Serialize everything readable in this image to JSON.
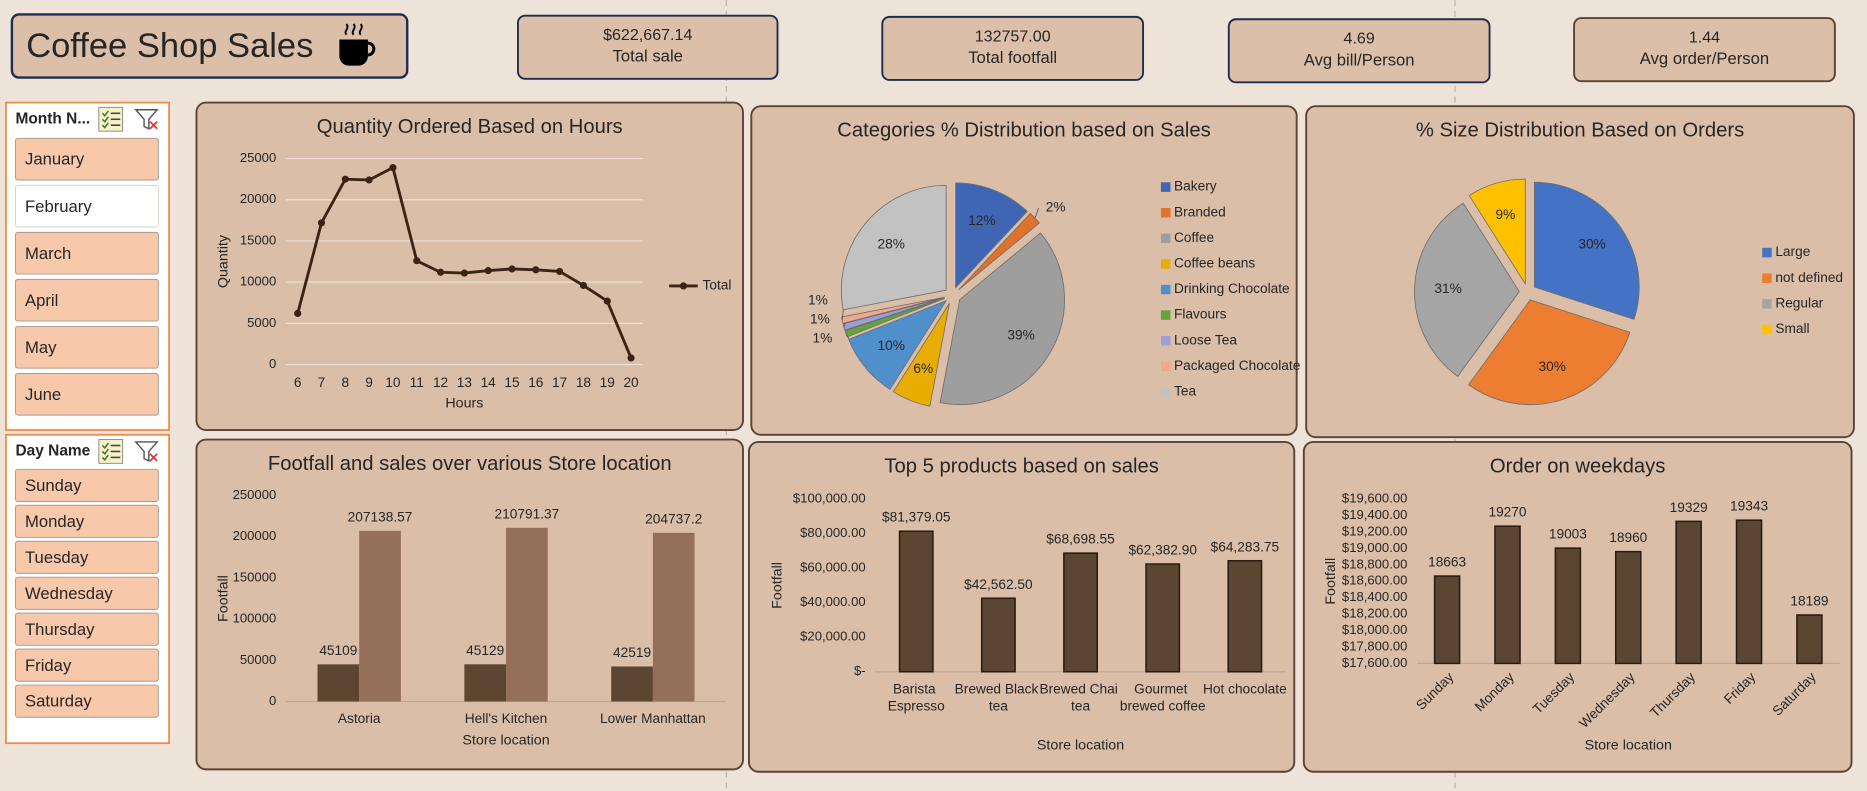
{
  "header": {
    "title": "Coffee Shop Sales"
  },
  "kpis": [
    {
      "value": "$622,667.14",
      "label": "Total sale"
    },
    {
      "value": "132757.00",
      "label": "Total footfall"
    },
    {
      "value": "4.69",
      "label": "Avg bill/Person"
    },
    {
      "value": "1.44",
      "label": "Avg order/Person"
    }
  ],
  "slicers": [
    {
      "title": "Month N...",
      "items": [
        "January",
        "February",
        "March",
        "April",
        "May",
        "June"
      ],
      "selected": "February"
    },
    {
      "title": "Day Name",
      "items": [
        "Sunday",
        "Monday",
        "Tuesday",
        "Wednesday",
        "Thursday",
        "Friday",
        "Saturday"
      ]
    }
  ],
  "chart_data": [
    {
      "type": "line",
      "title": "Quantity Ordered Based on Hours",
      "x_label": "Hours",
      "y_label": "Quantity",
      "categories": [
        "6",
        "7",
        "8",
        "9",
        "10",
        "11",
        "12",
        "13",
        "14",
        "15",
        "16",
        "17",
        "18",
        "19",
        "20"
      ],
      "series": [
        {
          "name": "Total",
          "color": "#3b2414",
          "values": [
            6200,
            17200,
            22500,
            22400,
            23900,
            12600,
            11200,
            11100,
            11400,
            11600,
            11500,
            11300,
            9600,
            7700,
            800
          ]
        }
      ],
      "ylim": [
        0,
        25000
      ],
      "yticks": [
        0,
        5000,
        10000,
        15000,
        20000,
        25000
      ],
      "grid": true,
      "legend": "right"
    },
    {
      "type": "pie",
      "title": "Categories % Distribution based on Sales",
      "categories": [
        "Bakery",
        "Branded",
        "Coffee",
        "Coffee beans",
        "Drinking Chocolate",
        "Flavours",
        "Loose Tea",
        "Packaged Chocolate",
        "Tea"
      ],
      "values": [
        12,
        2,
        39,
        6,
        10,
        1,
        1,
        1,
        28
      ],
      "value_labels": [
        "12%",
        "2%",
        "39%",
        "6%",
        "10%",
        "1%",
        "1%",
        "1%",
        "28%"
      ],
      "colors": [
        "#3f66b5",
        "#e2712a",
        "#9e9e9e",
        "#e8ad00",
        "#4f8fcc",
        "#64a43e",
        "#9a9fd8",
        "#eea98a",
        "#c2c2c2"
      ],
      "legend": "right",
      "exploded": true
    },
    {
      "type": "pie",
      "title": "% Size Distribution Based on Orders",
      "categories": [
        "Large",
        "not defined",
        "Regular",
        "Small"
      ],
      "values": [
        30,
        30,
        31,
        9
      ],
      "value_labels": [
        "30%",
        "30%",
        "31%",
        "9%"
      ],
      "colors": [
        "#4472c4",
        "#ed7d31",
        "#a5a5a5",
        "#ffc000"
      ],
      "legend": "right",
      "exploded": true
    },
    {
      "type": "bar",
      "title": "Footfall and sales over various Store location",
      "x_label": "Store location",
      "y_label": "Footfall",
      "categories": [
        "Astoria",
        "Hell's Kitchen",
        "Lower Manhattan"
      ],
      "series": [
        {
          "color": "#5c4632",
          "values": [
            45109,
            45129,
            42519
          ]
        },
        {
          "color": "#94705a",
          "values": [
            207138.57,
            210791.37,
            204737.2
          ]
        }
      ],
      "ylim": [
        0,
        250000
      ],
      "yticks": [
        0,
        50000,
        100000,
        150000,
        200000,
        250000
      ],
      "grid": false
    },
    {
      "type": "bar",
      "title": "Top 5 products based on sales",
      "x_label": "Store location",
      "y_label": "Footfall",
      "categories": [
        "Barista Espresso",
        "Brewed Black tea",
        "Brewed Chai tea",
        "Gourmet brewed coffee",
        "Hot chocolate"
      ],
      "values": [
        81379.05,
        42562.5,
        68698.55,
        62382.9,
        64283.75
      ],
      "value_labels": [
        "$81,379.05",
        "$42,562.50",
        "$68,698.55",
        "$62,382.90",
        "$64,283.75"
      ],
      "color": "#5c4632",
      "ylim": [
        0,
        100000
      ],
      "yticks": [
        {
          "value": 0,
          "label": "$-"
        },
        {
          "value": 20000,
          "label": "$20,000.00"
        },
        {
          "value": 40000,
          "label": "$40,000.00"
        },
        {
          "value": 60000,
          "label": "$60,000.00"
        },
        {
          "value": 80000,
          "label": "$80,000.00"
        },
        {
          "value": 100000,
          "label": "$100,000.00"
        }
      ],
      "grid": false
    },
    {
      "type": "bar",
      "title": "Order on weekdays",
      "x_label": "Store location",
      "y_label": "Footfall",
      "categories": [
        "Sunday",
        "Monday",
        "Tuesday",
        "Wednesday",
        "Thursday",
        "Friday",
        "Saturday"
      ],
      "values": [
        18663,
        19270,
        19003,
        18960,
        19329,
        19343,
        18189
      ],
      "color": "#5c4632",
      "ylim": [
        17600,
        19600
      ],
      "yticks": [
        {
          "value": 17600,
          "label": "$17,600.00"
        },
        {
          "value": 17800,
          "label": "$17,800.00"
        },
        {
          "value": 18000,
          "label": "$18,000.00"
        },
        {
          "value": 18200,
          "label": "$18,200.00"
        },
        {
          "value": 18400,
          "label": "$18,400.00"
        },
        {
          "value": 18600,
          "label": "$18,600.00"
        },
        {
          "value": 18800,
          "label": "$18,800.00"
        },
        {
          "value": 19000,
          "label": "$19,000.00"
        },
        {
          "value": 19200,
          "label": "$19,200.00"
        },
        {
          "value": 19400,
          "label": "$19,400.00"
        },
        {
          "value": 19600,
          "label": "$19,600.00"
        }
      ],
      "grid": false,
      "x_tick_rotation": -45
    }
  ]
}
